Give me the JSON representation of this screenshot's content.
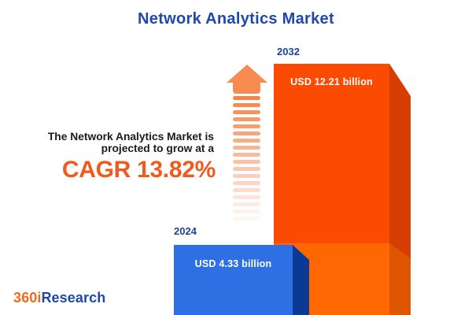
{
  "title": "Network Analytics Market",
  "tagline": {
    "line1": "The Network Analytics Market is",
    "line2": "projected to grow at a",
    "cagr": "CAGR 13.82%"
  },
  "chart_data": {
    "type": "bar",
    "title": "Network Analytics Market",
    "categories": [
      "2024",
      "2032"
    ],
    "values": [
      4.33,
      12.21
    ],
    "unit": "USD billion",
    "value_labels": [
      "USD 4.33 billion",
      "USD 12.21 billion"
    ],
    "cagr_percent": 13.82,
    "legend": "none",
    "grid": false,
    "orientation": "vertical",
    "style": "3d-infographic-bars"
  },
  "logo": {
    "part1": "360i",
    "part2": "Research"
  },
  "arrow": {
    "dash_count": 18
  },
  "colors": {
    "title_blue": "#1E49A8",
    "year_blue": "#1E429F",
    "dark_text": "#1B1B1B",
    "cagr_orange": "#F15A1E",
    "bar2032_front_top": "#FB4A02",
    "bar2032_front_bottom": "#FE6702",
    "bar2032_side_top": "#D73E03",
    "bar2032_side_bottom": "#DE5502",
    "bar2024_front": "#2E70E4",
    "bar2024_side": "#0B3A94",
    "arrow_head": "#F78B51",
    "arrow_dash": "#F5793A",
    "logo_orange": "#F26A1B",
    "logo_blue": "#1E49A8",
    "value_text": "#FFFFFF"
  }
}
